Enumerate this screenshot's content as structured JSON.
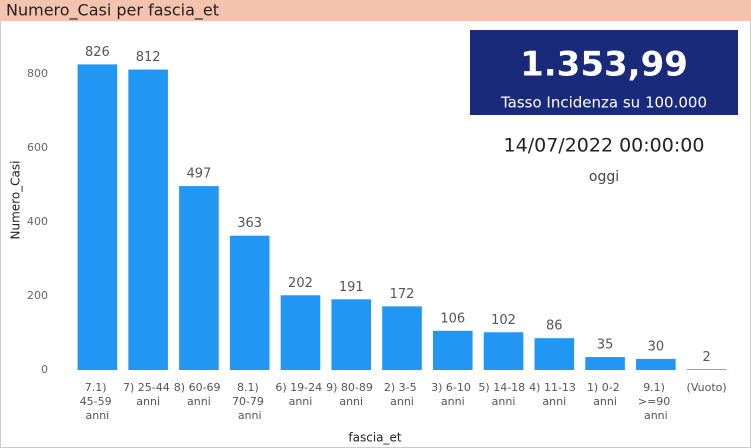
{
  "chart_data": {
    "type": "bar",
    "title": "Numero_Casi per fascia_et",
    "x_label": "fascia_et",
    "y_label": "Numero_Casi",
    "categories": [
      "7.1) 45-59 anni",
      "7) 25-44 anni",
      "8) 60-69 anni",
      "8.1) 70-79 anni",
      "6) 19-24 anni",
      "9) 80-89 anni",
      "2) 3-5 anni",
      "3) 6-10 anni",
      "5) 14-18 anni",
      "4) 11-13 anni",
      "1) 0-2 anni",
      "9.1) >=90 anni",
      "(Vuoto)"
    ],
    "values": [
      826,
      812,
      497,
      363,
      202,
      191,
      172,
      106,
      102,
      86,
      35,
      30,
      2
    ],
    "color": "#2196f3",
    "ylim": [
      0,
      900
    ],
    "yticks": [
      0,
      200,
      400,
      600,
      800
    ],
    "grid": false
  },
  "card": {
    "value": "1.353,99",
    "label": "Tasso Incidenza su 100.000",
    "date": "14/07/2022 00:00:00",
    "date_label": "oggi"
  }
}
